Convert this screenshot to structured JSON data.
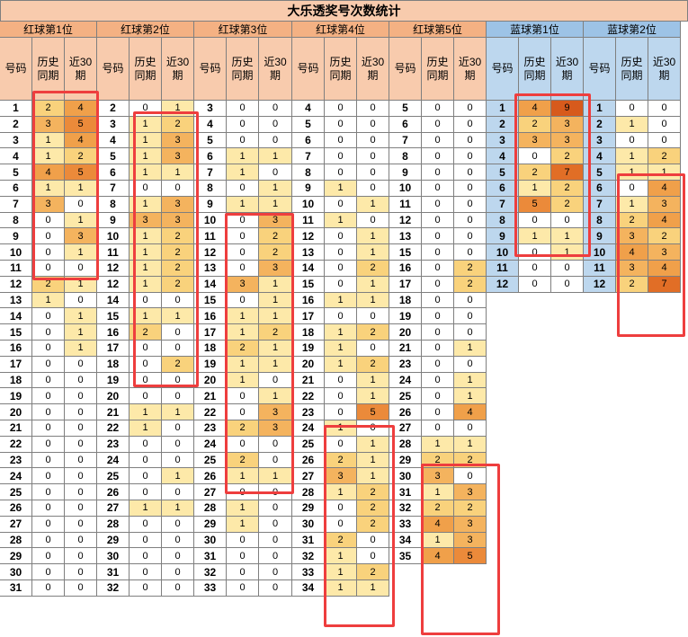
{
  "title": "大乐透奖号次数统计",
  "sub_headers": [
    "号码",
    "历史\n同期",
    "近30\n期"
  ],
  "colors": {
    "highlight": "#ee3e3e",
    "red_header": "#f4b183",
    "blue_header": "#9dc3e6"
  },
  "groups": [
    {
      "name": "红球第1位",
      "type": "red",
      "rows": [
        [
          1,
          2,
          4
        ],
        [
          2,
          3,
          5
        ],
        [
          3,
          1,
          4
        ],
        [
          4,
          1,
          2
        ],
        [
          5,
          4,
          5
        ],
        [
          6,
          1,
          1
        ],
        [
          7,
          3,
          0
        ],
        [
          8,
          0,
          1
        ],
        [
          9,
          0,
          3
        ],
        [
          10,
          0,
          1
        ],
        [
          11,
          0,
          0
        ],
        [
          12,
          2,
          1
        ],
        [
          13,
          1,
          0
        ],
        [
          14,
          0,
          1
        ],
        [
          15,
          0,
          1
        ],
        [
          16,
          0,
          1
        ],
        [
          17,
          0,
          0
        ],
        [
          18,
          0,
          0
        ],
        [
          19,
          0,
          0
        ],
        [
          20,
          0,
          0
        ],
        [
          21,
          0,
          0
        ],
        [
          22,
          0,
          0
        ],
        [
          23,
          0,
          0
        ],
        [
          24,
          0,
          0
        ],
        [
          25,
          0,
          0
        ],
        [
          26,
          0,
          0
        ],
        [
          27,
          0,
          0
        ],
        [
          28,
          0,
          0
        ],
        [
          29,
          0,
          0
        ],
        [
          30,
          0,
          0
        ],
        [
          31,
          0,
          0
        ]
      ]
    },
    {
      "name": "红球第2位",
      "type": "red",
      "rows": [
        [
          2,
          0,
          1
        ],
        [
          3,
          1,
          2
        ],
        [
          4,
          1,
          3
        ],
        [
          5,
          1,
          3
        ],
        [
          6,
          1,
          1
        ],
        [
          7,
          0,
          0
        ],
        [
          8,
          1,
          3
        ],
        [
          9,
          3,
          3
        ],
        [
          10,
          1,
          2
        ],
        [
          11,
          1,
          2
        ],
        [
          12,
          1,
          2
        ],
        [
          12,
          1,
          2
        ],
        [
          14,
          0,
          0
        ],
        [
          15,
          1,
          1
        ],
        [
          16,
          2,
          0
        ],
        [
          17,
          0,
          0
        ],
        [
          18,
          0,
          2
        ],
        [
          19,
          0,
          0
        ],
        [
          20,
          0,
          0
        ],
        [
          21,
          1,
          1
        ],
        [
          22,
          1,
          0
        ],
        [
          23,
          0,
          0
        ],
        [
          24,
          0,
          0
        ],
        [
          25,
          0,
          1
        ],
        [
          26,
          0,
          0
        ],
        [
          27,
          1,
          1
        ],
        [
          28,
          0,
          0
        ],
        [
          29,
          0,
          0
        ],
        [
          30,
          0,
          0
        ],
        [
          31,
          0,
          0
        ],
        [
          32,
          0,
          0
        ]
      ]
    },
    {
      "name": "红球第3位",
      "type": "red",
      "rows": [
        [
          3,
          0,
          0
        ],
        [
          4,
          0,
          0
        ],
        [
          5,
          0,
          0
        ],
        [
          6,
          1,
          1
        ],
        [
          7,
          1,
          0
        ],
        [
          8,
          0,
          1
        ],
        [
          9,
          1,
          1
        ],
        [
          10,
          0,
          3
        ],
        [
          11,
          0,
          2
        ],
        [
          12,
          0,
          2
        ],
        [
          13,
          0,
          3
        ],
        [
          14,
          3,
          1
        ],
        [
          15,
          0,
          1
        ],
        [
          16,
          1,
          1
        ],
        [
          17,
          1,
          2
        ],
        [
          18,
          2,
          1
        ],
        [
          19,
          1,
          1
        ],
        [
          20,
          1,
          0
        ],
        [
          21,
          0,
          1
        ],
        [
          22,
          0,
          3
        ],
        [
          23,
          2,
          3
        ],
        [
          24,
          0,
          0
        ],
        [
          25,
          2,
          0
        ],
        [
          26,
          1,
          1
        ],
        [
          27,
          0,
          0
        ],
        [
          28,
          1,
          0
        ],
        [
          29,
          1,
          0
        ],
        [
          30,
          0,
          0
        ],
        [
          31,
          0,
          0
        ],
        [
          32,
          0,
          0
        ],
        [
          33,
          0,
          0
        ]
      ]
    },
    {
      "name": "红球第4位",
      "type": "red",
      "rows": [
        [
          4,
          0,
          0
        ],
        [
          5,
          0,
          0
        ],
        [
          6,
          0,
          0
        ],
        [
          7,
          0,
          0
        ],
        [
          8,
          0,
          0
        ],
        [
          9,
          1,
          0
        ],
        [
          10,
          0,
          1
        ],
        [
          11,
          1,
          0
        ],
        [
          12,
          0,
          1
        ],
        [
          13,
          0,
          1
        ],
        [
          14,
          0,
          2
        ],
        [
          15,
          0,
          1
        ],
        [
          16,
          1,
          1
        ],
        [
          17,
          0,
          0
        ],
        [
          18,
          1,
          2
        ],
        [
          19,
          1,
          0
        ],
        [
          20,
          1,
          2
        ],
        [
          21,
          0,
          1
        ],
        [
          22,
          0,
          1
        ],
        [
          23,
          0,
          5
        ],
        [
          24,
          1,
          0
        ],
        [
          25,
          0,
          1
        ],
        [
          26,
          2,
          1
        ],
        [
          27,
          3,
          1
        ],
        [
          28,
          1,
          2
        ],
        [
          29,
          0,
          2
        ],
        [
          30,
          0,
          2
        ],
        [
          31,
          2,
          0
        ],
        [
          32,
          1,
          0
        ],
        [
          33,
          1,
          2
        ],
        [
          34,
          1,
          1
        ]
      ]
    },
    {
      "name": "红球第5位",
      "type": "red",
      "rows": [
        [
          5,
          0,
          0
        ],
        [
          6,
          0,
          0
        ],
        [
          7,
          0,
          0
        ],
        [
          8,
          0,
          0
        ],
        [
          9,
          0,
          0
        ],
        [
          10,
          0,
          0
        ],
        [
          11,
          0,
          0
        ],
        [
          12,
          0,
          0
        ],
        [
          13,
          0,
          0
        ],
        [
          15,
          0,
          0
        ],
        [
          16,
          0,
          2
        ],
        [
          17,
          0,
          2
        ],
        [
          18,
          0,
          0
        ],
        [
          19,
          0,
          0
        ],
        [
          20,
          0,
          0
        ],
        [
          21,
          0,
          1
        ],
        [
          23,
          0,
          0
        ],
        [
          24,
          0,
          1
        ],
        [
          25,
          0,
          1
        ],
        [
          26,
          0,
          4
        ],
        [
          27,
          0,
          0
        ],
        [
          28,
          1,
          1
        ],
        [
          29,
          2,
          2
        ],
        [
          30,
          3,
          0
        ],
        [
          31,
          1,
          3
        ],
        [
          32,
          2,
          2
        ],
        [
          33,
          4,
          3
        ],
        [
          34,
          1,
          3
        ],
        [
          35,
          4,
          5
        ]
      ]
    },
    {
      "name": "蓝球第1位",
      "type": "blue",
      "rows": [
        [
          1,
          4,
          9
        ],
        [
          2,
          2,
          3
        ],
        [
          3,
          3,
          3
        ],
        [
          4,
          0,
          2
        ],
        [
          5,
          2,
          7
        ],
        [
          6,
          1,
          2
        ],
        [
          7,
          5,
          2
        ],
        [
          8,
          0,
          0
        ],
        [
          9,
          1,
          1
        ],
        [
          10,
          0,
          1
        ],
        [
          11,
          0,
          0
        ],
        [
          12,
          0,
          0
        ]
      ]
    },
    {
      "name": "蓝球第2位",
      "type": "blue",
      "rows": [
        [
          1,
          0,
          0
        ],
        [
          2,
          1,
          0
        ],
        [
          3,
          0,
          0
        ],
        [
          4,
          1,
          2
        ],
        [
          5,
          1,
          1
        ],
        [
          6,
          0,
          4
        ],
        [
          7,
          1,
          3
        ],
        [
          8,
          2,
          4
        ],
        [
          9,
          3,
          2
        ],
        [
          10,
          4,
          3
        ],
        [
          11,
          3,
          4
        ],
        [
          12,
          2,
          7
        ]
      ]
    }
  ]
}
